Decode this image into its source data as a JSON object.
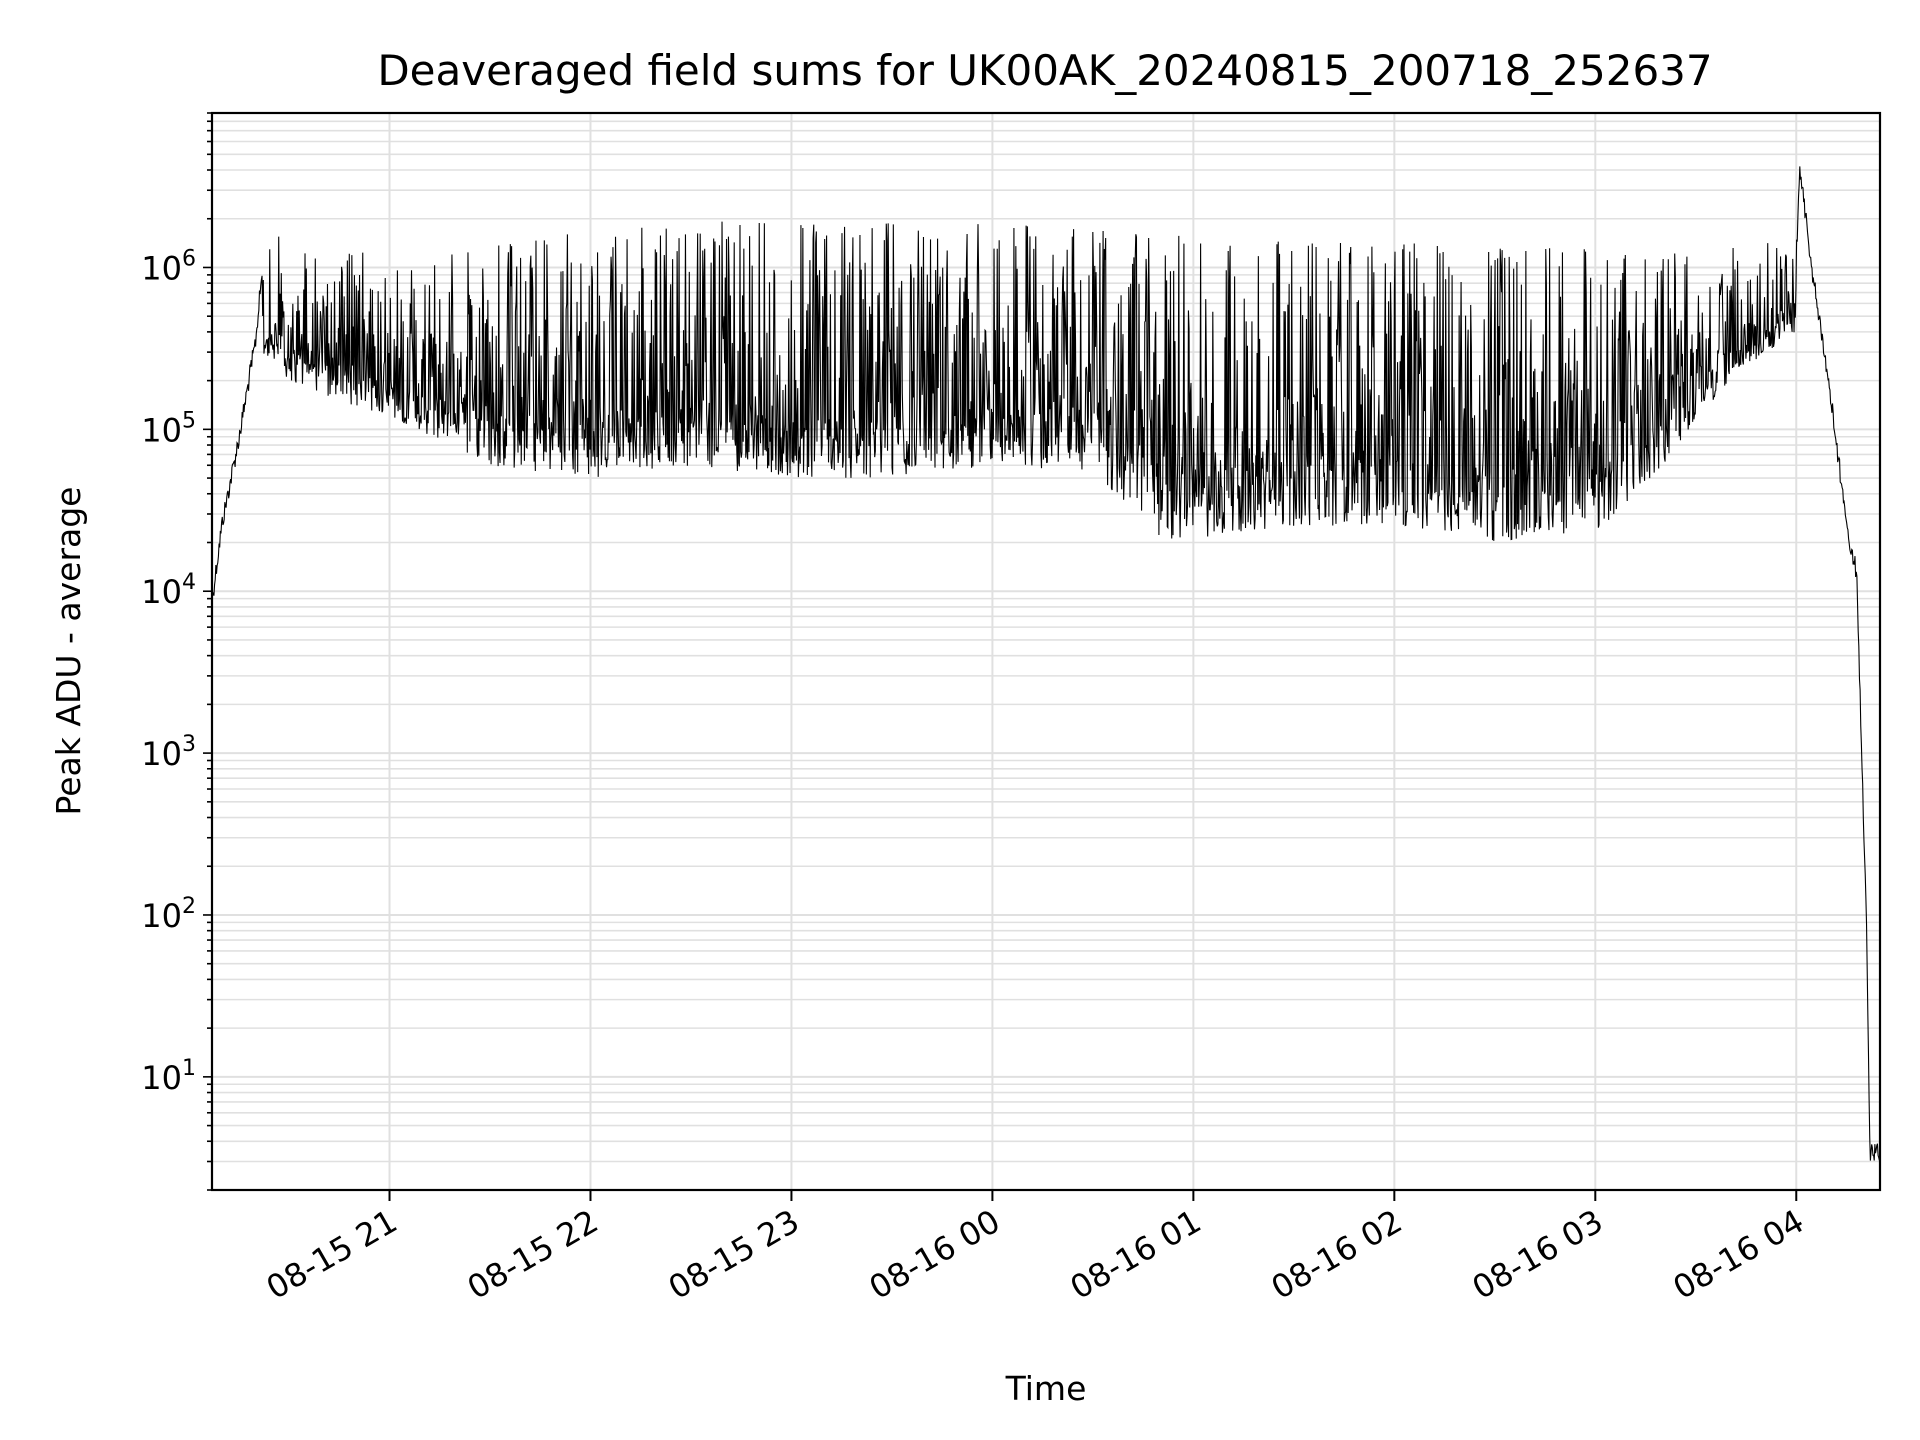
{
  "chart_data": {
    "type": "line",
    "title": "Deaveraged field sums for UK00AK_20240815_200718_252637",
    "xlabel": "Time",
    "ylabel": "Peak ADU - average",
    "yscale": "log",
    "ylim": [
      2,
      9000000
    ],
    "xlim": [
      "2024-08-15 20:07",
      "2024-08-16 04:25"
    ],
    "grid": true,
    "line_color": "#000000",
    "grid_color": "#e0e0e0",
    "x_ticks": [
      {
        "time": "2024-08-15 21:00",
        "label": "08-15 21"
      },
      {
        "time": "2024-08-15 22:00",
        "label": "08-15 22"
      },
      {
        "time": "2024-08-15 23:00",
        "label": "08-15 23"
      },
      {
        "time": "2024-08-16 00:00",
        "label": "08-16 00"
      },
      {
        "time": "2024-08-16 01:00",
        "label": "08-16 01"
      },
      {
        "time": "2024-08-16 02:00",
        "label": "08-16 02"
      },
      {
        "time": "2024-08-16 03:00",
        "label": "08-16 03"
      },
      {
        "time": "2024-08-16 04:00",
        "label": "08-16 04"
      }
    ],
    "y_ticks": [
      {
        "value": 10,
        "base": "10",
        "exp": "1"
      },
      {
        "value": 100,
        "base": "10",
        "exp": "2"
      },
      {
        "value": 1000,
        "base": "10",
        "exp": "3"
      },
      {
        "value": 10000,
        "base": "10",
        "exp": "4"
      },
      {
        "value": 100000,
        "base": "10",
        "exp": "5"
      },
      {
        "value": 1000000,
        "base": "10",
        "exp": "6"
      }
    ],
    "series": [
      {
        "envelope_upper": [
          {
            "time": "2024-08-15 20:07",
            "value": 10000
          },
          {
            "time": "2024-08-15 20:10",
            "value": 30000
          },
          {
            "time": "2024-08-15 20:15",
            "value": 100000
          },
          {
            "time": "2024-08-15 20:20",
            "value": 400000
          },
          {
            "time": "2024-08-15 20:22",
            "value": 1100000
          },
          {
            "time": "2024-08-15 20:30",
            "value": 1600000
          },
          {
            "time": "2024-08-15 20:45",
            "value": 1200000
          },
          {
            "time": "2024-08-15 21:00",
            "value": 900000
          },
          {
            "time": "2024-08-15 21:30",
            "value": 1200000
          },
          {
            "time": "2024-08-15 22:00",
            "value": 1400000
          },
          {
            "time": "2024-08-15 22:30",
            "value": 1600000
          },
          {
            "time": "2024-08-15 23:00",
            "value": 1600000
          },
          {
            "time": "2024-08-15 23:30",
            "value": 1600000
          },
          {
            "time": "2024-08-16 00:00",
            "value": 1700000
          },
          {
            "time": "2024-08-16 00:30",
            "value": 1500000
          },
          {
            "time": "2024-08-16 01:00",
            "value": 1300000
          },
          {
            "time": "2024-08-16 01:30",
            "value": 1200000
          },
          {
            "time": "2024-08-16 02:00",
            "value": 1200000
          },
          {
            "time": "2024-08-16 02:30",
            "value": 1100000
          },
          {
            "time": "2024-08-16 03:00",
            "value": 1100000
          },
          {
            "time": "2024-08-16 03:30",
            "value": 1000000
          },
          {
            "time": "2024-08-16 04:00",
            "value": 1300000
          },
          {
            "time": "2024-08-16 04:01",
            "value": 4800000
          },
          {
            "time": "2024-08-16 04:05",
            "value": 1000000
          },
          {
            "time": "2024-08-16 04:10",
            "value": 200000
          },
          {
            "time": "2024-08-16 04:15",
            "value": 30000
          },
          {
            "time": "2024-08-16 04:18",
            "value": 15000
          },
          {
            "time": "2024-08-16 04:21",
            "value": 100
          },
          {
            "time": "2024-08-16 04:22",
            "value": 4
          },
          {
            "time": "2024-08-16 04:25",
            "value": 4
          }
        ],
        "envelope_lower": [
          {
            "time": "2024-08-15 20:22",
            "value": 300000
          },
          {
            "time": "2024-08-15 20:30",
            "value": 200000
          },
          {
            "time": "2024-08-15 20:45",
            "value": 150000
          },
          {
            "time": "2024-08-15 21:00",
            "value": 120000
          },
          {
            "time": "2024-08-15 21:30",
            "value": 60000
          },
          {
            "time": "2024-08-15 22:00",
            "value": 50000
          },
          {
            "time": "2024-08-15 22:30",
            "value": 60000
          },
          {
            "time": "2024-08-15 23:00",
            "value": 50000
          },
          {
            "time": "2024-08-15 23:30",
            "value": 50000
          },
          {
            "time": "2024-08-16 00:00",
            "value": 60000
          },
          {
            "time": "2024-08-16 00:30",
            "value": 55000
          },
          {
            "time": "2024-08-16 00:50",
            "value": 20000
          },
          {
            "time": "2024-08-16 01:30",
            "value": 25000
          },
          {
            "time": "2024-08-16 02:00",
            "value": 25000
          },
          {
            "time": "2024-08-16 02:30",
            "value": 20000
          },
          {
            "time": "2024-08-16 03:00",
            "value": 22000
          },
          {
            "time": "2024-08-16 03:20",
            "value": 60000
          },
          {
            "time": "2024-08-16 03:40",
            "value": 200000
          },
          {
            "time": "2024-08-16 04:00",
            "value": 400000
          }
        ]
      }
    ]
  }
}
